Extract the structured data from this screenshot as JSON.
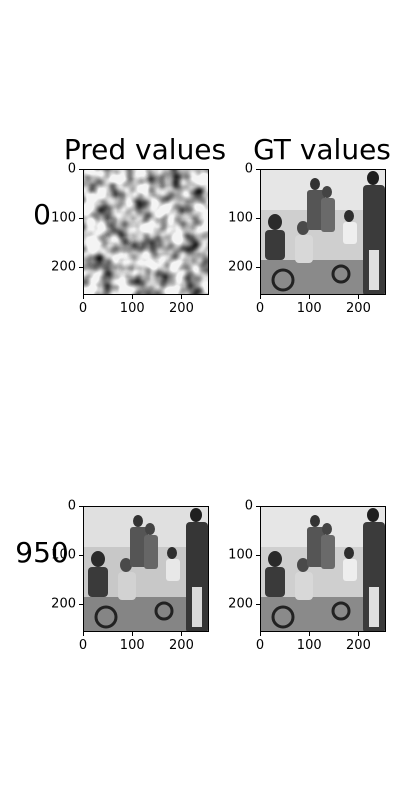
{
  "figure": {
    "column_titles": [
      "Pred values",
      "GT values"
    ],
    "row_labels": [
      "0",
      "950"
    ]
  },
  "chart_data": [
    {
      "type": "heatmap",
      "title": "Pred values",
      "row_label": "0",
      "content": "noise-like grayscale prediction (mostly white with scattered gray blobs)",
      "x_ticks": [
        "0",
        "100",
        "200"
      ],
      "y_ticks": [
        "0",
        "100",
        "200"
      ],
      "xlim": [
        0,
        256
      ],
      "ylim": [
        256,
        0
      ],
      "colormap": "gray"
    },
    {
      "type": "heatmap",
      "title": "GT values",
      "row_label": "0",
      "content": "grayscale photo of a group of people in a room",
      "x_ticks": [
        "0",
        "100",
        "200"
      ],
      "y_ticks": [
        "0",
        "100",
        "200"
      ],
      "xlim": [
        0,
        256
      ],
      "ylim": [
        256,
        0
      ],
      "colormap": "gray"
    },
    {
      "type": "heatmap",
      "title": "",
      "row_label": "950",
      "content": "grayscale prediction closely resembling the ground-truth photo",
      "x_ticks": [
        "0",
        "100",
        "200"
      ],
      "y_ticks": [
        "0",
        "100",
        "200"
      ],
      "xlim": [
        0,
        256
      ],
      "ylim": [
        256,
        0
      ],
      "colormap": "gray"
    },
    {
      "type": "heatmap",
      "title": "",
      "row_label": "950",
      "content": "grayscale photo of a group of people in a room",
      "x_ticks": [
        "0",
        "100",
        "200"
      ],
      "y_ticks": [
        "0",
        "100",
        "200"
      ],
      "xlim": [
        0,
        256
      ],
      "ylim": [
        256,
        0
      ],
      "colormap": "gray"
    }
  ]
}
